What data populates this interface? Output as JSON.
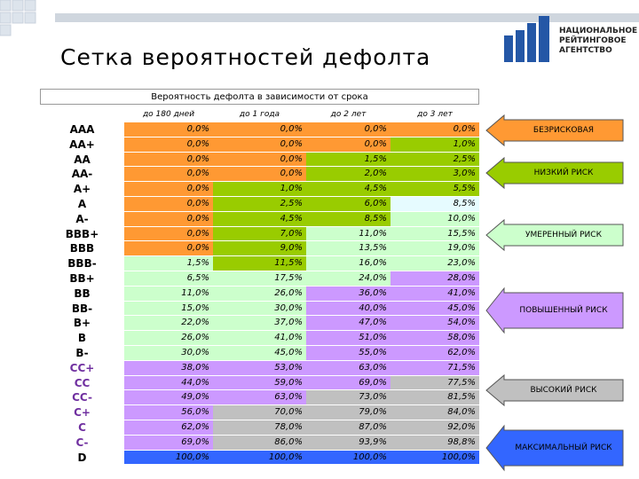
{
  "header": {
    "title": "Сетка вероятностей дефолта",
    "logo": [
      "НАЦИОНАЛЬНОЕ",
      "РЕЙТИНГОВОЕ",
      "АГЕНТСТВО"
    ]
  },
  "table": {
    "caption": "Вероятность дефолта в зависимости от срока",
    "columns": [
      "до 180 дней",
      "до 1 года",
      "до 2 лет",
      "до 3 лет"
    ],
    "rows": [
      {
        "rating": "AAA",
        "rating_color": "#000000",
        "cells": [
          "0,0%",
          "0,0%",
          "0,0%",
          "0,0%"
        ],
        "colors": [
          "#ff9933",
          "#ff9933",
          "#ff9933",
          "#ff9933"
        ]
      },
      {
        "rating": "AA+",
        "rating_color": "#000000",
        "cells": [
          "0,0%",
          "0,0%",
          "0,0%",
          "1,0%"
        ],
        "colors": [
          "#ff9933",
          "#ff9933",
          "#ff9933",
          "#99cc00"
        ]
      },
      {
        "rating": "AA",
        "rating_color": "#000000",
        "cells": [
          "0,0%",
          "0,0%",
          "1,5%",
          "2,5%"
        ],
        "colors": [
          "#ff9933",
          "#ff9933",
          "#99cc00",
          "#99cc00"
        ]
      },
      {
        "rating": "AA-",
        "rating_color": "#000000",
        "cells": [
          "0,0%",
          "0,0%",
          "2,0%",
          "3,0%"
        ],
        "colors": [
          "#ff9933",
          "#ff9933",
          "#99cc00",
          "#99cc00"
        ]
      },
      {
        "rating": "A+",
        "rating_color": "#000000",
        "cells": [
          "0,0%",
          "1,0%",
          "4,5%",
          "5,5%"
        ],
        "colors": [
          "#ff9933",
          "#99cc00",
          "#99cc00",
          "#99cc00"
        ]
      },
      {
        "rating": "A",
        "rating_color": "#000000",
        "cells": [
          "0,0%",
          "2,5%",
          "6,0%",
          "8,5%"
        ],
        "colors": [
          "#ff9933",
          "#99cc00",
          "#99cc00",
          "#e6fbff"
        ]
      },
      {
        "rating": "A-",
        "rating_color": "#000000",
        "cells": [
          "0,0%",
          "4,5%",
          "8,5%",
          "10,0%"
        ],
        "colors": [
          "#ff9933",
          "#99cc00",
          "#99cc00",
          "#ccffcc"
        ]
      },
      {
        "rating": "BBB+",
        "rating_color": "#000000",
        "cells": [
          "0,0%",
          "7,0%",
          "11,0%",
          "15,5%"
        ],
        "colors": [
          "#ff9933",
          "#99cc00",
          "#ccffcc",
          "#ccffcc"
        ]
      },
      {
        "rating": "BBB",
        "rating_color": "#000000",
        "cells": [
          "0,0%",
          "9,0%",
          "13,5%",
          "19,0%"
        ],
        "colors": [
          "#ff9933",
          "#99cc00",
          "#ccffcc",
          "#ccffcc"
        ]
      },
      {
        "rating": "BBB-",
        "rating_color": "#000000",
        "cells": [
          "1,5%",
          "11,5%",
          "16,0%",
          "23,0%"
        ],
        "colors": [
          "#ccffcc",
          "#99cc00",
          "#ccffcc",
          "#ccffcc"
        ]
      },
      {
        "rating": "BB+",
        "rating_color": "#000000",
        "cells": [
          "6,5%",
          "17,5%",
          "24,0%",
          "28,0%"
        ],
        "colors": [
          "#ccffcc",
          "#ccffcc",
          "#ccffcc",
          "#cc99ff"
        ]
      },
      {
        "rating": "BB",
        "rating_color": "#000000",
        "cells": [
          "11,0%",
          "26,0%",
          "36,0%",
          "41,0%"
        ],
        "colors": [
          "#ccffcc",
          "#ccffcc",
          "#cc99ff",
          "#cc99ff"
        ]
      },
      {
        "rating": "BB-",
        "rating_color": "#000000",
        "cells": [
          "15,0%",
          "30,0%",
          "40,0%",
          "45,0%"
        ],
        "colors": [
          "#ccffcc",
          "#ccffcc",
          "#cc99ff",
          "#cc99ff"
        ]
      },
      {
        "rating": "B+",
        "rating_color": "#000000",
        "cells": [
          "22,0%",
          "37,0%",
          "47,0%",
          "54,0%"
        ],
        "colors": [
          "#ccffcc",
          "#ccffcc",
          "#cc99ff",
          "#cc99ff"
        ]
      },
      {
        "rating": "B",
        "rating_color": "#000000",
        "cells": [
          "26,0%",
          "41,0%",
          "51,0%",
          "58,0%"
        ],
        "colors": [
          "#ccffcc",
          "#ccffcc",
          "#cc99ff",
          "#cc99ff"
        ]
      },
      {
        "rating": "B-",
        "rating_color": "#000000",
        "cells": [
          "30,0%",
          "45,0%",
          "55,0%",
          "62,0%"
        ],
        "colors": [
          "#ccffcc",
          "#ccffcc",
          "#cc99ff",
          "#cc99ff"
        ]
      },
      {
        "rating": "CC+",
        "rating_color": "#7030a0",
        "cells": [
          "38,0%",
          "53,0%",
          "63,0%",
          "71,5%"
        ],
        "colors": [
          "#cc99ff",
          "#cc99ff",
          "#cc99ff",
          "#cc99ff"
        ]
      },
      {
        "rating": "CC",
        "rating_color": "#7030a0",
        "cells": [
          "44,0%",
          "59,0%",
          "69,0%",
          "77,5%"
        ],
        "colors": [
          "#cc99ff",
          "#cc99ff",
          "#cc99ff",
          "#c0c0c0"
        ]
      },
      {
        "rating": "CC-",
        "rating_color": "#7030a0",
        "cells": [
          "49,0%",
          "63,0%",
          "73,0%",
          "81,5%"
        ],
        "colors": [
          "#cc99ff",
          "#cc99ff",
          "#c0c0c0",
          "#c0c0c0"
        ]
      },
      {
        "rating": "C+",
        "rating_color": "#7030a0",
        "cells": [
          "56,0%",
          "70,0%",
          "79,0%",
          "84,0%"
        ],
        "colors": [
          "#cc99ff",
          "#c0c0c0",
          "#c0c0c0",
          "#c0c0c0"
        ]
      },
      {
        "rating": "C",
        "rating_color": "#7030a0",
        "cells": [
          "62,0%",
          "78,0%",
          "87,0%",
          "92,0%"
        ],
        "colors": [
          "#cc99ff",
          "#c0c0c0",
          "#c0c0c0",
          "#c0c0c0"
        ]
      },
      {
        "rating": "C-",
        "rating_color": "#7030a0",
        "cells": [
          "69,0%",
          "86,0%",
          "93,9%",
          "98,8%"
        ],
        "colors": [
          "#cc99ff",
          "#c0c0c0",
          "#c0c0c0",
          "#c0c0c0"
        ]
      },
      {
        "rating": "D",
        "rating_color": "#000000",
        "cells": [
          "100,0%",
          "100,0%",
          "100,0%",
          "100,0%"
        ],
        "colors": [
          "#3366ff",
          "#3366ff",
          "#3366ff",
          "#3366ff"
        ]
      }
    ]
  },
  "legend": [
    {
      "label": "БЕЗРИСКОВАЯ",
      "color": "#ff9933"
    },
    {
      "label": "НИЗКИЙ РИСК",
      "color": "#99cc00"
    },
    {
      "label": "УМЕРЕННЫЙ РИСК",
      "color": "#ccffcc"
    },
    {
      "label": "ПОВЫШЕННЫЙ РИСК",
      "color": "#cc99ff"
    },
    {
      "label": "ВЫСОКИЙ РИСК",
      "color": "#c0c0c0"
    },
    {
      "label": "МАКСИМАЛЬНЫЙ РИСК",
      "color": "#3366ff"
    }
  ]
}
